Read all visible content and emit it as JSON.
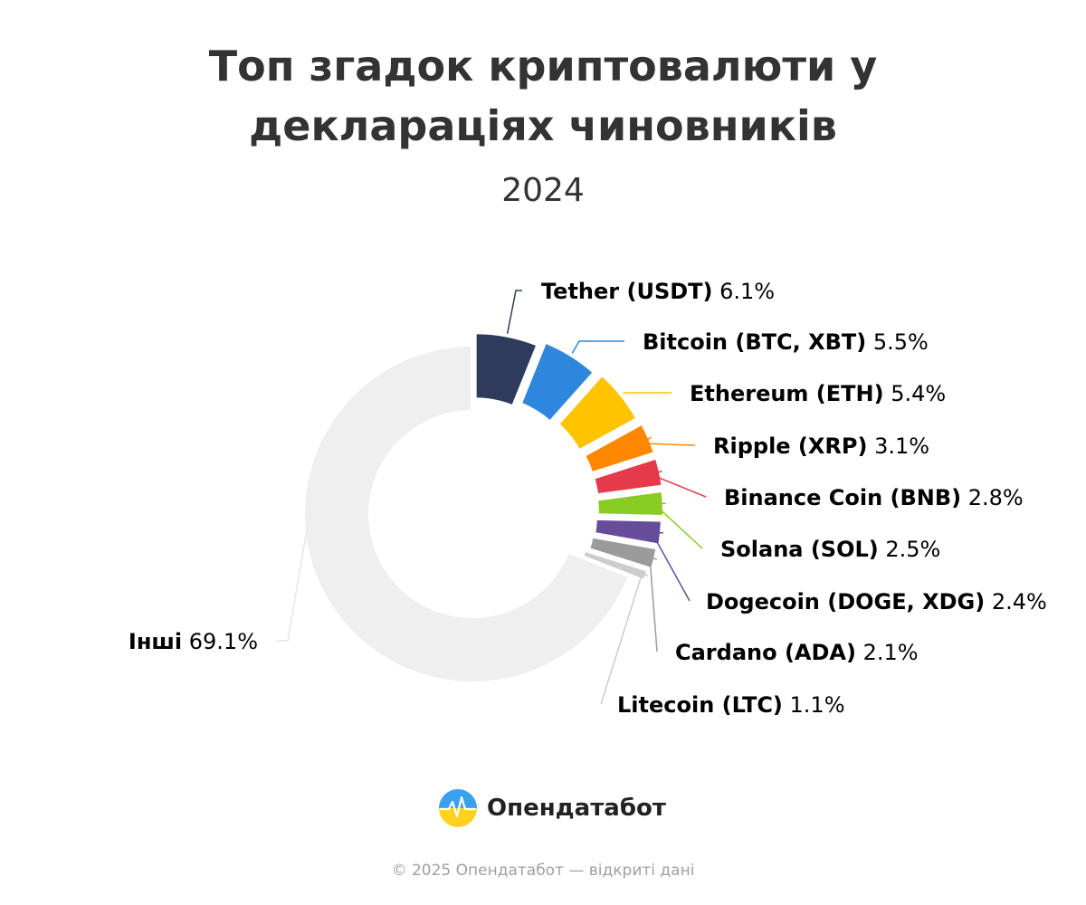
{
  "header": {
    "title_line1": "Топ згадок криптовалюти у",
    "title_line2": "деклараціях чиновників",
    "subtitle": "2024"
  },
  "chart_data": {
    "type": "pie",
    "variant": "donut",
    "title": "Топ згадок криптовалюти у деклараціях чиновників",
    "subtitle": "2024",
    "unit": "%",
    "slices": [
      {
        "label": "Tether (USDT)",
        "value": 6.1,
        "color": "#2e3b5c"
      },
      {
        "label": "Bitcoin (BTC, XBT)",
        "value": 5.5,
        "color": "#2f86dd"
      },
      {
        "label": "Ethereum (ETH)",
        "value": 5.4,
        "color": "#ffc300"
      },
      {
        "label": "Ripple (XRP)",
        "value": 3.1,
        "color": "#ff8800"
      },
      {
        "label": "Binance Coin (BNB)",
        "value": 2.8,
        "color": "#e53a4b"
      },
      {
        "label": "Solana (SOL)",
        "value": 2.5,
        "color": "#88cc22"
      },
      {
        "label": "Dogecoin (DOGE, XDG)",
        "value": 2.4,
        "color": "#664c99"
      },
      {
        "label": "Cardano (ADA)",
        "value": 2.1,
        "color": "#9b9b9b"
      },
      {
        "label": "Litecoin (LTC)",
        "value": 1.1,
        "color": "#cccccc"
      },
      {
        "label": "Інші",
        "value": 69.1,
        "color": "#efefef"
      }
    ]
  },
  "brand": {
    "name": "Опендатабот",
    "logo_icon": "opendatabot-logo-icon"
  },
  "footer": {
    "text": "© 2025 Опендатабот — відкриті дані"
  }
}
